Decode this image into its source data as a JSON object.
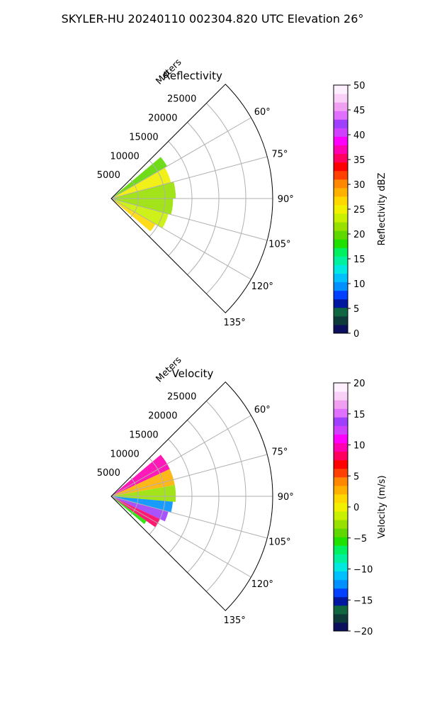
{
  "title": "SKYLER-HU  20240110  002304.820 UTC Elevation 26°",
  "panels": [
    {
      "title": "Reflectivity",
      "radial_axis_label": "Meters",
      "radial_ticks": [
        "5000",
        "10000",
        "15000",
        "20000",
        "25000"
      ],
      "azimuth_ticks": [
        "60°",
        "75°",
        "90°",
        "105°",
        "120°",
        "135°"
      ],
      "colorbar": {
        "label": "Reflectivity dBZ",
        "ticks": [
          "0",
          "5",
          "10",
          "15",
          "20",
          "25",
          "30",
          "35",
          "40",
          "45",
          "50"
        ],
        "range": [
          0,
          50
        ],
        "colors": [
          "#0b0f5c",
          "#0f3a3a",
          "#0f6640",
          "#0018a0",
          "#0040ff",
          "#0090ff",
          "#00c0ff",
          "#00e8e0",
          "#00f0a0",
          "#00f060",
          "#20e000",
          "#60d800",
          "#98e000",
          "#c8f000",
          "#f0f000",
          "#ffd800",
          "#ffb000",
          "#ff8800",
          "#ff4000",
          "#ff0000",
          "#ff0060",
          "#ff00b0",
          "#ff00ff",
          "#d040ff",
          "#a040ff",
          "#e070ff",
          "#f0a0f0",
          "#f8d0f8",
          "#fff0ff"
        ]
      }
    },
    {
      "title": "Velocity",
      "radial_axis_label": "Meters",
      "radial_ticks": [
        "5000",
        "10000",
        "15000",
        "20000",
        "25000"
      ],
      "azimuth_ticks": [
        "60°",
        "75°",
        "90°",
        "105°",
        "120°",
        "135°"
      ],
      "colorbar": {
        "label": "Velocity (m/s)",
        "ticks": [
          "−20",
          "−15",
          "−10",
          "−5",
          "0",
          "5",
          "10",
          "15",
          "20"
        ],
        "range": [
          -20,
          20
        ],
        "colors": [
          "#0b0f5c",
          "#0f3a3a",
          "#0f6640",
          "#0018a0",
          "#0040ff",
          "#0090ff",
          "#00c0ff",
          "#00e8e0",
          "#00f0a0",
          "#00f060",
          "#20e000",
          "#60d800",
          "#98e000",
          "#c8f000",
          "#f0f000",
          "#ffd800",
          "#ffb000",
          "#ff8800",
          "#ff4000",
          "#ff0000",
          "#ff0060",
          "#ff00b0",
          "#ff00ff",
          "#d040ff",
          "#a040ff",
          "#e070ff",
          "#f0a0f0",
          "#f8d0f8",
          "#fff0ff"
        ]
      }
    }
  ],
  "chart_data": [
    {
      "type": "heatmap",
      "projection": "polar-sector",
      "title": "Reflectivity",
      "radial_label": "Meters",
      "radial_range": [
        0,
        30000
      ],
      "radial_ticks": [
        5000,
        10000,
        15000,
        20000,
        25000
      ],
      "azimuth_range_deg": [
        45,
        135
      ],
      "azimuth_ticks": [
        60,
        75,
        90,
        105,
        120,
        135
      ],
      "grid": true,
      "colorbar_label": "Reflectivity dBZ",
      "colorbar_range": [
        0,
        50
      ],
      "echo_extent_m": 12000,
      "sectors": [
        {
          "az": [
            50,
            60
          ],
          "range": [
            0,
            12000
          ],
          "value": 20
        },
        {
          "az": [
            60,
            75
          ],
          "range": [
            0,
            11500
          ],
          "value": 25
        },
        {
          "az": [
            75,
            90
          ],
          "range": [
            0,
            12000
          ],
          "value": 22
        },
        {
          "az": [
            90,
            105
          ],
          "range": [
            0,
            11500
          ],
          "value": 21
        },
        {
          "az": [
            105,
            120
          ],
          "range": [
            0,
            11000
          ],
          "value": 23
        },
        {
          "az": [
            120,
            130
          ],
          "range": [
            0,
            9500
          ],
          "value": 27
        }
      ]
    },
    {
      "type": "heatmap",
      "projection": "polar-sector",
      "title": "Velocity",
      "radial_label": "Meters",
      "radial_range": [
        0,
        30000
      ],
      "radial_ticks": [
        5000,
        10000,
        15000,
        20000,
        25000
      ],
      "azimuth_range_deg": [
        45,
        135
      ],
      "azimuth_ticks": [
        60,
        75,
        90,
        105,
        120,
        135
      ],
      "grid": true,
      "colorbar_label": "Velocity (m/s)",
      "colorbar_range": [
        -20,
        20
      ],
      "echo_extent_m": 12000,
      "sectors": [
        {
          "az": [
            50,
            65
          ],
          "range": [
            0,
            12000
          ],
          "value": 9
        },
        {
          "az": [
            65,
            80
          ],
          "range": [
            0,
            12000
          ],
          "value": 3
        },
        {
          "az": [
            80,
            95
          ],
          "range": [
            0,
            12000
          ],
          "value": -3
        },
        {
          "az": [
            95,
            105
          ],
          "range": [
            0,
            11500
          ],
          "value": -12
        },
        {
          "az": [
            105,
            115
          ],
          "range": [
            0,
            11000
          ],
          "value": 14
        },
        {
          "az": [
            115,
            125
          ],
          "range": [
            0,
            10000
          ],
          "value": 8
        },
        {
          "az": [
            125,
            130
          ],
          "range": [
            0,
            8000
          ],
          "value": -6
        }
      ]
    }
  ]
}
